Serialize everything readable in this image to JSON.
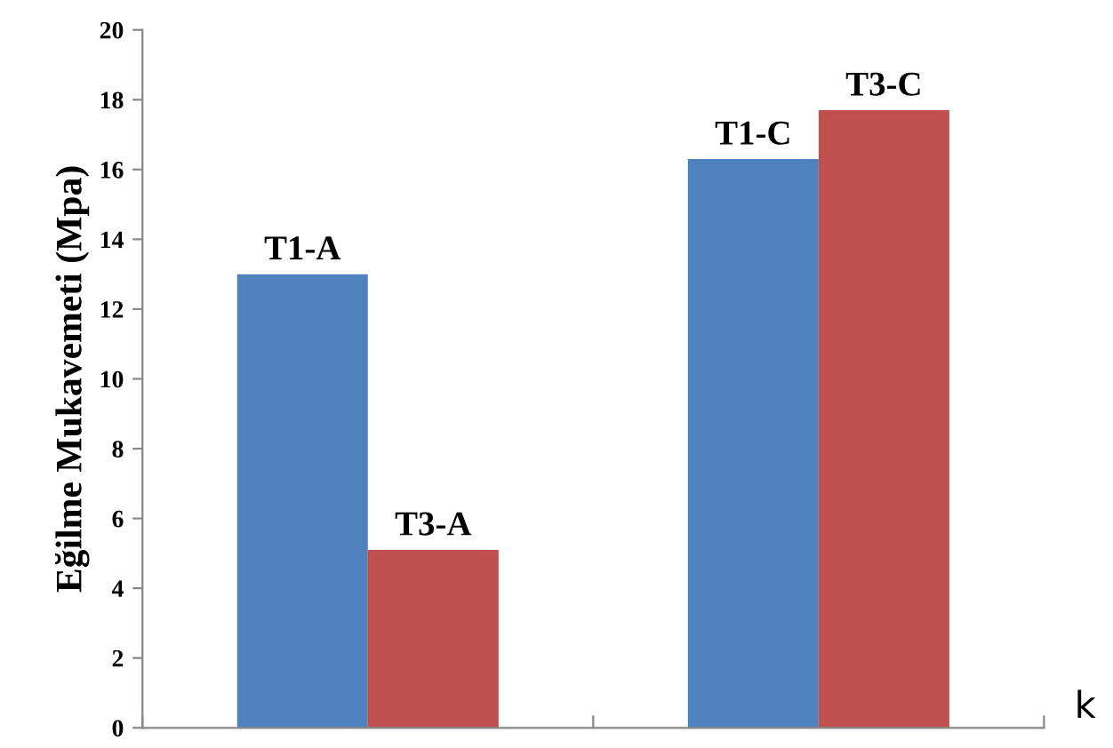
{
  "chart_data": {
    "type": "bar",
    "ylabel": "Eğilme Mukavemeti (Mpa)",
    "categories": [
      null,
      null
    ],
    "series": [
      {
        "color": "#4f81bd",
        "values": [
          13.0,
          16.3
        ],
        "value_labels": [
          "T1-A",
          "T1-C"
        ]
      },
      {
        "color": "#c0504d",
        "values": [
          5.1,
          17.7
        ],
        "value_labels": [
          "T3-A",
          "T3-C"
        ]
      }
    ],
    "ylim": [
      0,
      20
    ],
    "yticks": [
      0,
      2,
      4,
      6,
      8,
      10,
      12,
      14,
      16,
      18,
      20
    ],
    "grid": false,
    "legend": false,
    "annotations": [
      "k"
    ]
  }
}
